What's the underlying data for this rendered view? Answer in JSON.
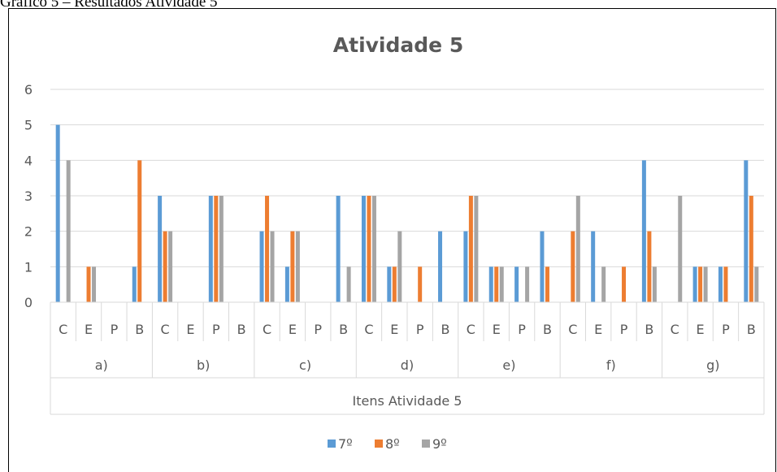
{
  "caption": "Gráfico 5 – Resultados Atividade 5",
  "chart_data": {
    "type": "bar",
    "title": "Atividade 5",
    "x_label": "Itens Atividade 5",
    "groups": [
      "a)",
      "b)",
      "c)",
      "d)",
      "e)",
      "f)",
      "g)"
    ],
    "categories": [
      "C",
      "E",
      "P",
      "B",
      "C",
      "E",
      "P",
      "B",
      "C",
      "E",
      "P",
      "B",
      "C",
      "E",
      "P",
      "B",
      "C",
      "E",
      "P",
      "B",
      "C",
      "E",
      "P",
      "B",
      "C",
      "E",
      "P",
      "B"
    ],
    "series": [
      {
        "name": "7º",
        "color": "#5b9bd5",
        "values": [
          5,
          0,
          0,
          1,
          3,
          0,
          3,
          0,
          2,
          1,
          0,
          3,
          3,
          1,
          0,
          2,
          2,
          1,
          1,
          2,
          0,
          2,
          0,
          4,
          0,
          1,
          1,
          4
        ]
      },
      {
        "name": "8º",
        "color": "#ed7d31",
        "values": [
          0,
          1,
          0,
          4,
          2,
          0,
          3,
          0,
          3,
          2,
          0,
          0,
          3,
          1,
          1,
          0,
          3,
          1,
          0,
          1,
          2,
          0,
          1,
          2,
          0,
          1,
          1,
          3
        ]
      },
      {
        "name": "9º",
        "color": "#a5a5a5",
        "values": [
          4,
          1,
          0,
          0,
          2,
          0,
          3,
          0,
          2,
          2,
          0,
          1,
          3,
          2,
          0,
          0,
          3,
          1,
          1,
          0,
          3,
          1,
          0,
          1,
          3,
          1,
          0,
          1
        ]
      }
    ],
    "ylim": [
      0,
      6
    ],
    "yticks": [
      0,
      1,
      2,
      3,
      4,
      5,
      6
    ],
    "grid": true,
    "legend": "bottom"
  }
}
